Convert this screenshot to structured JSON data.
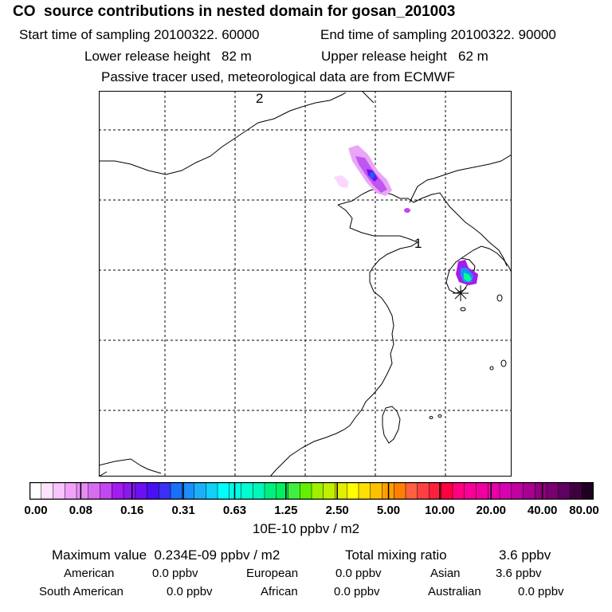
{
  "header": {
    "title": "CO  source contributions in nested domain for gosan_201003",
    "start_label": "Start time of sampling 20100322. 60000",
    "end_label": "End time of sampling 20100322. 90000",
    "lower_label": "Lower release height   82 m",
    "upper_label": "Upper release height   62 m",
    "note": "Passive tracer used, meteorological data are from ECMWF"
  },
  "map": {
    "markers": [
      {
        "id": "1",
        "label": "1"
      },
      {
        "id": "2",
        "label": "2"
      }
    ],
    "station_symbol": "asterisk",
    "colors": {
      "background": "#ffffff",
      "coast": "#000000",
      "grid": "#000000"
    }
  },
  "colorbar": {
    "tick_labels": [
      "0.00",
      "0.08",
      "0.16",
      "0.31",
      "0.63",
      "1.25",
      "2.50",
      "5.00",
      "10.00",
      "20.00",
      "40.00",
      "80.00"
    ],
    "units": "10E-10 ppbv / m2",
    "colors": [
      "#ffffff",
      "#fde3fe",
      "#f8c4fc",
      "#f2a2fa",
      "#e68cf5",
      "#d66cf2",
      "#c446f0",
      "#a41cef",
      "#8a18f0",
      "#6a10f2",
      "#4a10f4",
      "#3a30f6",
      "#1a70f8",
      "#1a90f8",
      "#1ab0f8",
      "#10d0f8",
      "#00ffff",
      "#00ffe8",
      "#00ffd0",
      "#00f8b8",
      "#00f080",
      "#00f060",
      "#40f040",
      "#60f000",
      "#a0f000",
      "#c0f000",
      "#e0f000",
      "#ffff00",
      "#ffe000",
      "#ffc000",
      "#ffa000",
      "#ff8000",
      "#ff6040",
      "#ff4040",
      "#ff2040",
      "#ff0040",
      "#ff0080",
      "#f80098",
      "#f000a0",
      "#e800a8",
      "#d800b0",
      "#c000a0",
      "#a80090",
      "#900080",
      "#780070",
      "#600060",
      "#400040",
      "#200020"
    ]
  },
  "stats": {
    "maximum": "Maximum value  0.234E-09 ppbv / m2",
    "total": "Total mixing ratio",
    "total_value": "3.6 ppbv"
  },
  "regions": [
    {
      "name": "American",
      "value": "0.0 ppbv"
    },
    {
      "name": "European",
      "value": "0.0 ppbv"
    },
    {
      "name": "Asian",
      "value": "3.6 ppbv"
    },
    {
      "name": "South American",
      "value": "0.0 ppbv"
    },
    {
      "name": "African",
      "value": "0.0 ppbv"
    },
    {
      "name": "Australian",
      "value": "0.0 ppbv"
    }
  ]
}
